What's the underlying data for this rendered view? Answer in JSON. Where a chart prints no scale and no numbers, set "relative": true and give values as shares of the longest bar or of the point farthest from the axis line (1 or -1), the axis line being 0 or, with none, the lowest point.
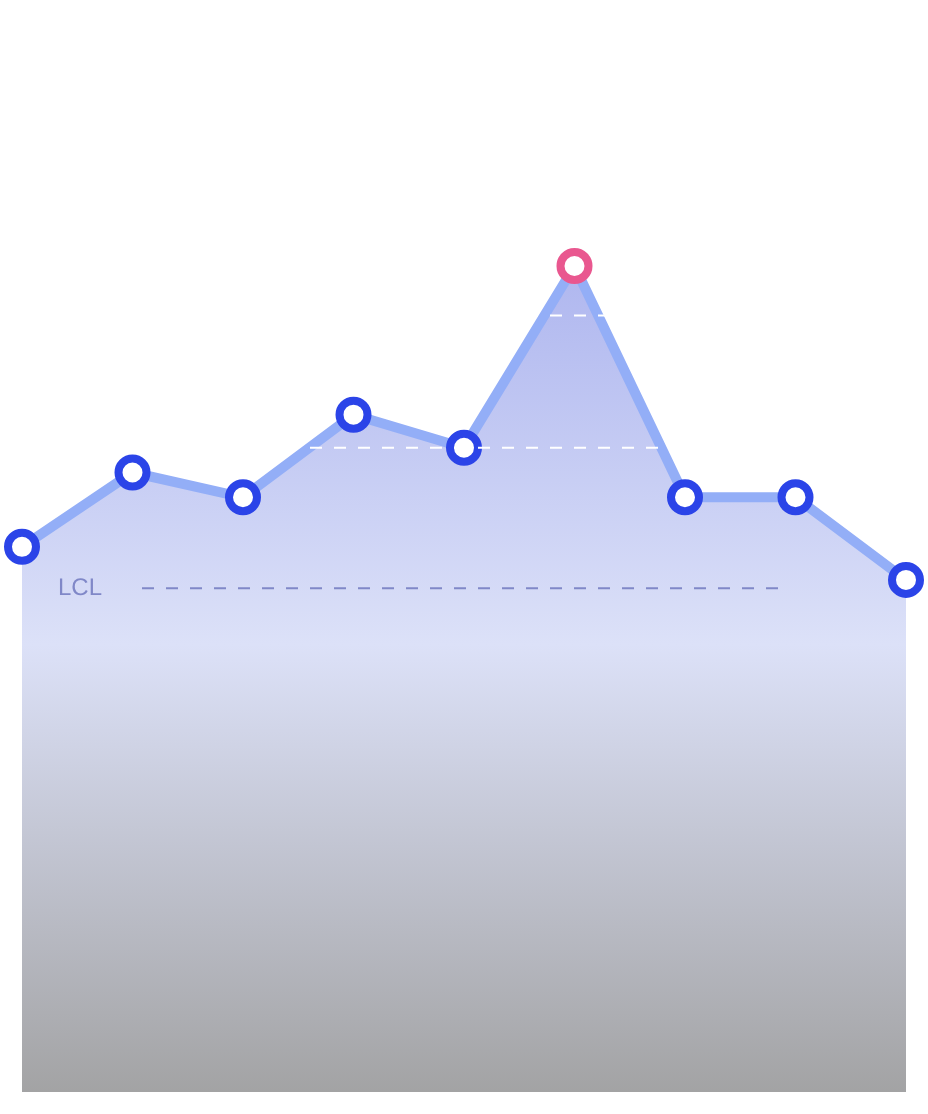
{
  "chart_data": {
    "type": "area",
    "relative": true,
    "categories": [
      null,
      null,
      null,
      null,
      null,
      null,
      null,
      null,
      null
    ],
    "series": [
      {
        "color": "#93aef7",
        "colors": [
          "#2b44e8",
          "#2b44e8",
          "#2b44e8",
          "#2b44e8",
          "#2b44e8",
          "#e9578f",
          "#2b44e8",
          "#2b44e8",
          "#2b44e8"
        ],
        "values": [
          0.66,
          0.75,
          0.72,
          0.82,
          0.78,
          1,
          0.72,
          0.72,
          0.62
        ]
      }
    ],
    "marker": "circle",
    "legend": false,
    "ref_lines": [
      {
        "axis": "y",
        "value": 0.61,
        "label": "LCL",
        "color": "#8088c8",
        "line_style": "dashed"
      },
      {
        "axis": "y",
        "value": 0.78,
        "color": "#ffffff",
        "line_style": "dashed"
      },
      {
        "axis": "y",
        "value": 0.94,
        "color": "#ffffff",
        "line_style": "dashed"
      }
    ]
  }
}
